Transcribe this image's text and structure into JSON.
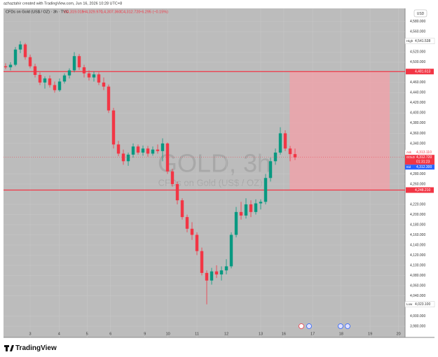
{
  "header": "azhaztahir created with TradingView.com, Jun 16, 2026 10:28 UTC+8",
  "footer": "TradingView",
  "chart_data": {
    "type": "candlestick",
    "legend": {
      "symbol": "CFDs on Gold (US$ / OZ) · 3h · TVC",
      "values": [
        "O4,319.015",
        "H4,329.970",
        "L4,307.360",
        "C4,312.720",
        "−6.295 (−0.15%)"
      ]
    },
    "watermark": {
      "title": "GOLD, 3h",
      "subtitle": "CFDs on Gold (US$ / OZ)"
    },
    "currency": "USD",
    "up_color": "#089981",
    "down_color": "#f23645",
    "grid": true,
    "x": [
      0,
      1,
      2,
      3,
      4,
      5,
      6,
      7,
      8,
      9,
      10,
      11,
      12,
      13,
      14,
      15,
      16,
      17,
      18,
      19,
      20,
      21,
      22,
      23,
      24,
      25,
      26,
      27,
      28,
      29,
      30,
      31,
      32,
      33,
      34,
      35,
      36,
      37,
      38,
      39,
      40,
      41,
      42,
      43,
      44,
      45,
      46,
      47,
      48,
      49,
      50,
      51,
      52,
      53,
      54,
      55,
      56,
      57,
      58,
      59
    ],
    "open": [
      4492,
      4490,
      4495,
      4525,
      4535,
      4510,
      4492,
      4475,
      4460,
      4468,
      4455,
      4445,
      4462,
      4474,
      4484,
      4512,
      4490,
      4478,
      4470,
      4476,
      4460,
      4452,
      4405,
      4338,
      4320,
      4305,
      4318,
      4334,
      4322,
      4330,
      4320,
      4328,
      4325,
      4340,
      4285,
      4260,
      4228,
      4195,
      4172,
      4160,
      4128,
      4085,
      4070,
      4088,
      4082,
      4090,
      4098,
      4160,
      4205,
      4198,
      4220,
      4205,
      4222,
      4225,
      4272,
      4305,
      4322,
      4360,
      4330,
      4319.015
    ],
    "high": [
      4498,
      4500,
      4530,
      4541.538,
      4538,
      4515,
      4497,
      4480,
      4472,
      4474,
      4462,
      4468,
      4478,
      4488,
      4520,
      4516,
      4495,
      4484,
      4482,
      4480,
      4470,
      4456,
      4410,
      4345,
      4328,
      4322,
      4340,
      4338,
      4336,
      4335,
      4334,
      4338,
      4350,
      4342,
      4290,
      4265,
      4232,
      4200,
      4185,
      4165,
      4135,
      4090,
      4095,
      4100,
      4098,
      4112,
      4165,
      4215,
      4225,
      4232,
      4228,
      4230,
      4230,
      4280,
      4312,
      4330,
      4372,
      4366,
      4335,
      4329.97
    ],
    "low": [
      4486,
      4484,
      4492,
      4518,
      4505,
      4488,
      4470,
      4455,
      4448,
      4450,
      4440,
      4442,
      4458,
      4468,
      4480,
      4485,
      4470,
      4464,
      4462,
      4455,
      4445,
      4400,
      4330,
      4315,
      4298,
      4296,
      4312,
      4318,
      4316,
      4314,
      4316,
      4320,
      4305,
      4280,
      4255,
      4220,
      4190,
      4165,
      4150,
      4120,
      4080,
      4023.1,
      4062,
      4075,
      4070,
      4082,
      4094,
      4155,
      4190,
      4192,
      4195,
      4200,
      4210,
      4220,
      4265,
      4298,
      4318,
      4325,
      4305,
      4307.36
    ],
    "close": [
      4490,
      4495,
      4525,
      4535,
      4510,
      4492,
      4475,
      4460,
      4468,
      4455,
      4445,
      4462,
      4474,
      4484,
      4512,
      4490,
      4478,
      4470,
      4476,
      4460,
      4452,
      4405,
      4338,
      4320,
      4305,
      4318,
      4334,
      4322,
      4330,
      4320,
      4328,
      4325,
      4340,
      4285,
      4260,
      4228,
      4195,
      4172,
      4160,
      4128,
      4085,
      4070,
      4088,
      4082,
      4090,
      4098,
      4160,
      4205,
      4198,
      4220,
      4205,
      4222,
      4225,
      4272,
      4305,
      4322,
      4360,
      4330,
      4319.015,
      4312.72
    ],
    "xlim": [
      -0.43,
      81.43
    ],
    "xticks": [
      {
        "value": 5,
        "label": "3"
      },
      {
        "value": 10.9,
        "label": "4"
      },
      {
        "value": 16.6,
        "label": "5"
      },
      {
        "value": 21.4,
        "label": "6"
      },
      {
        "value": 28.4,
        "label": "9"
      },
      {
        "value": 33.1,
        "label": "10"
      },
      {
        "value": 39,
        "label": "11"
      },
      {
        "value": 45,
        "label": "12"
      },
      {
        "value": 52,
        "label": "13"
      },
      {
        "value": 56.7,
        "label": "16"
      },
      {
        "value": 62.6,
        "label": "17"
      },
      {
        "value": 68.4,
        "label": "18"
      },
      {
        "value": 74.3,
        "label": "19"
      },
      {
        "value": 80.1,
        "label": "20"
      }
    ],
    "ylim": [
      3958,
      4606
    ],
    "yticks": [
      {
        "value": 4580,
        "label": "4,580.000"
      },
      {
        "value": 4560,
        "label": "4,560.000"
      },
      {
        "value": 4520,
        "label": "4,520.000"
      },
      {
        "value": 4500,
        "label": "4,500.000"
      },
      {
        "value": 4460,
        "label": "4,460.000"
      },
      {
        "value": 4440,
        "label": "4,440.000"
      },
      {
        "value": 4420,
        "label": "4,420.000"
      },
      {
        "value": 4400,
        "label": "4,400.000"
      },
      {
        "value": 4380,
        "label": "4,380.000"
      },
      {
        "value": 4360,
        "label": "4,360.000"
      },
      {
        "value": 4340,
        "label": "4,340.000"
      },
      {
        "value": 4280,
        "label": "4,280.000"
      },
      {
        "value": 4260,
        "label": "4,260.000"
      },
      {
        "value": 4220,
        "label": "4,220.000"
      },
      {
        "value": 4200,
        "label": "4,200.000"
      },
      {
        "value": 4180,
        "label": "4,180.000"
      },
      {
        "value": 4160,
        "label": "4,160.000"
      },
      {
        "value": 4140,
        "label": "4,140.000"
      },
      {
        "value": 4120,
        "label": "4,120.000"
      },
      {
        "value": 4100,
        "label": "4,100.000"
      },
      {
        "value": 4080,
        "label": "4,080.000"
      },
      {
        "value": 4060,
        "label": "4,060.000"
      },
      {
        "value": 4040,
        "label": "4,040.000"
      },
      {
        "value": 4000,
        "label": "4,000.000"
      },
      {
        "value": 3980,
        "label": "3,980.000"
      }
    ],
    "markers": [
      {
        "name": "High",
        "value": 4541.538,
        "label": "4,541.538"
      },
      {
        "name": "Low",
        "value": 4023.1,
        "label": "4,023.100"
      }
    ],
    "hlines": [
      {
        "value": 4481.613,
        "label": "4,481.613",
        "color": "#f23645"
      },
      {
        "value": 4248.21,
        "label": "4,248.210",
        "color": "#f23645"
      }
    ],
    "zone": {
      "x_start": 57.9,
      "x_end": 78.3,
      "y_low": 4248.21,
      "y_high": 4481.613,
      "color": "#f4a0a8"
    },
    "quotes": [
      {
        "name": "Ask",
        "value": 4313.11,
        "label": "4,313.110",
        "color": "#f23645"
      },
      {
        "name": "GOLD",
        "value": 4312.72,
        "label": "4,312.720",
        "color": "#f23645",
        "countdown": "01:31:23"
      },
      {
        "name": "Bid",
        "value": 4312.3,
        "label": "4,312.300",
        "color": "#2962ff"
      }
    ]
  }
}
